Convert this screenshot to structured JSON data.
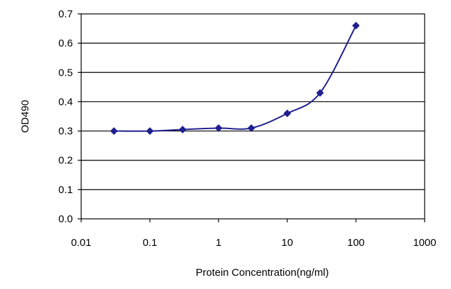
{
  "chart_data": {
    "type": "line",
    "xscale": "log",
    "xlabel": "Protein Concentration(ng/ml)",
    "ylabel": "OD490",
    "xlim": [
      0.01,
      1000
    ],
    "ylim": [
      0.0,
      0.7
    ],
    "xticks": [
      "0.01",
      "0.1",
      "1",
      "10",
      "100",
      "1000"
    ],
    "yticks": [
      "0.0",
      "0.1",
      "0.2",
      "0.3",
      "0.4",
      "0.5",
      "0.6",
      "0.7"
    ],
    "grid": "horizontal",
    "series": [
      {
        "x": [
          0.03,
          0.1,
          0.3,
          1,
          3,
          10,
          30,
          100
        ],
        "y": [
          0.3,
          0.3,
          0.305,
          0.31,
          0.31,
          0.36,
          0.43,
          0.66
        ]
      }
    ],
    "colors": {
      "series": "#1f1f8f",
      "grid": "#000000",
      "background": "#ffffff"
    }
  }
}
